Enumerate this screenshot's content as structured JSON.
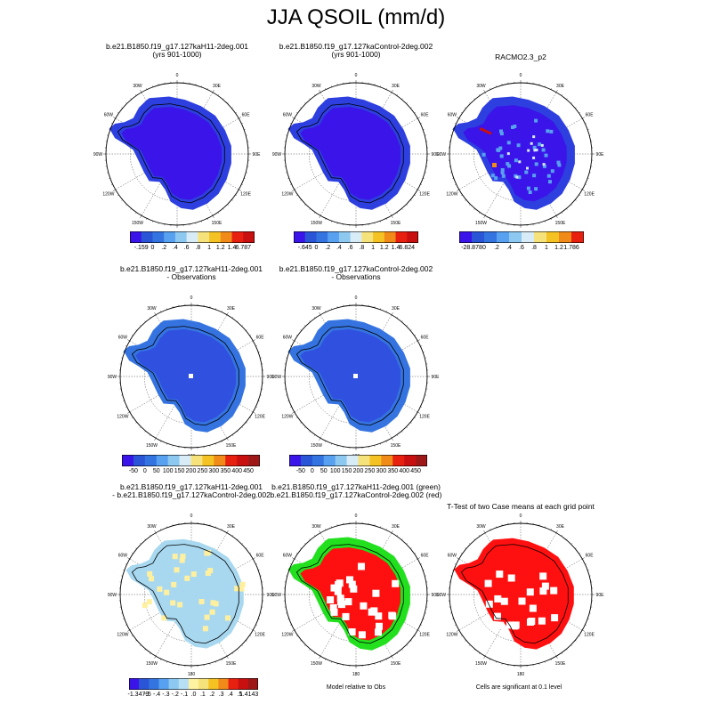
{
  "page": {
    "title": "JJA QSOIL (mm/d)"
  },
  "lon_labels": [
    "0",
    "30E",
    "60E",
    "90E",
    "120E",
    "150E",
    "180",
    "150W",
    "120W",
    "90W",
    "60W",
    "30W"
  ],
  "palettes": {
    "warm11": [
      "#3a14e8",
      "#2a55d6",
      "#3474e0",
      "#58a0f0",
      "#8cc8f0",
      "#d8ecf8",
      "#f6e27a",
      "#f5c224",
      "#f08a18",
      "#e82010",
      "#c81010",
      "#9e1818"
    ],
    "diff12": [
      "#3a14e8",
      "#2a55d6",
      "#3474e0",
      "#58a0f0",
      "#8cc8f0",
      "#b8e0f4",
      "#fff2a0",
      "#f6e27a",
      "#f5c224",
      "#f08a18",
      "#e82010",
      "#c81010",
      "#9e1818"
    ]
  },
  "colors": {
    "ice_deep": "#3a14e8",
    "ice_blue": "#2e3fe0",
    "obs_blue": "#3050e0",
    "obs_edge": "#3574e0",
    "light_blue": "#a8d8f0",
    "pale_yellow": "#fff0a0",
    "green": "#22e01e",
    "red": "#ff1010",
    "orange_hot": "#f08a18"
  },
  "panels": [
    {
      "id": "p1",
      "title": "b.e21.B1850.f19_g17.127kaH11-2deg.001\n(yrs 901-1000)",
      "style": "model"
    },
    {
      "id": "p2",
      "title": "b.e21.B1850.f19_g17.127kaControl-2deg.002\n(yrs 901-1000)",
      "style": "model"
    },
    {
      "id": "p3",
      "title": "RACMO2.3_p2",
      "style": "racmo"
    },
    {
      "id": "p4",
      "title": "b.e21.B1850.f19_g17.127kaH11-2deg.001\n- Observations",
      "style": "obs"
    },
    {
      "id": "p5",
      "title": "b.e21.B1850.f19_g17.127kaControl-2deg.002\n- Observations",
      "style": "obs"
    },
    {
      "id": "p7",
      "title": "b.e21.B1850.f19_g17.127kaH11-2deg.001\n- b.e21.B1850.f19_g17.127kaControl-2deg.002",
      "style": "diff"
    },
    {
      "id": "p8",
      "title": "b.e21.B1850.f19_g17.127kaH11-2deg.001 (green)\nb.e21.B1850.f19_g17.127kaControl-2deg.002 (red)",
      "style": "greenred"
    },
    {
      "id": "p9",
      "title": "T-Test of two Case means at each grid point",
      "style": "ttest"
    }
  ],
  "colorbars": [
    {
      "id": "cb1",
      "labels": [
        "-.159",
        "0",
        ".2",
        ".4",
        ".6",
        ".8",
        "1",
        "1.2",
        "1.4",
        "6.787"
      ]
    },
    {
      "id": "cb2",
      "labels": [
        "-.645",
        "0",
        ".2",
        ".4",
        ".6",
        ".8",
        "1",
        "1.2",
        "1.4",
        "6.824"
      ]
    },
    {
      "id": "cb3",
      "labels": [
        "-28.878",
        "0",
        ".2",
        ".4",
        ".6",
        ".8",
        "1",
        "1.2",
        "1.786"
      ]
    },
    {
      "id": "cb4",
      "labels": [
        "-50",
        "0",
        "50",
        "100",
        "150",
        "200",
        "250",
        "300",
        "350",
        "400",
        "450"
      ]
    },
    {
      "id": "cb5",
      "labels": [
        "-50",
        "0",
        "50",
        "100",
        "150",
        "200",
        "250",
        "300",
        "350",
        "400",
        "450"
      ]
    },
    {
      "id": "cb7",
      "labels": [
        "-1.3479",
        "-.5",
        "-.4",
        "-.3",
        "-.2",
        "-.1",
        ".0",
        ".1",
        ".2",
        ".3",
        ".4",
        ".5",
        "1.4143"
      ]
    }
  ],
  "notes": {
    "model_obs": "Model relative to Obs",
    "significance": "Cells are significant at 0.1 level"
  }
}
